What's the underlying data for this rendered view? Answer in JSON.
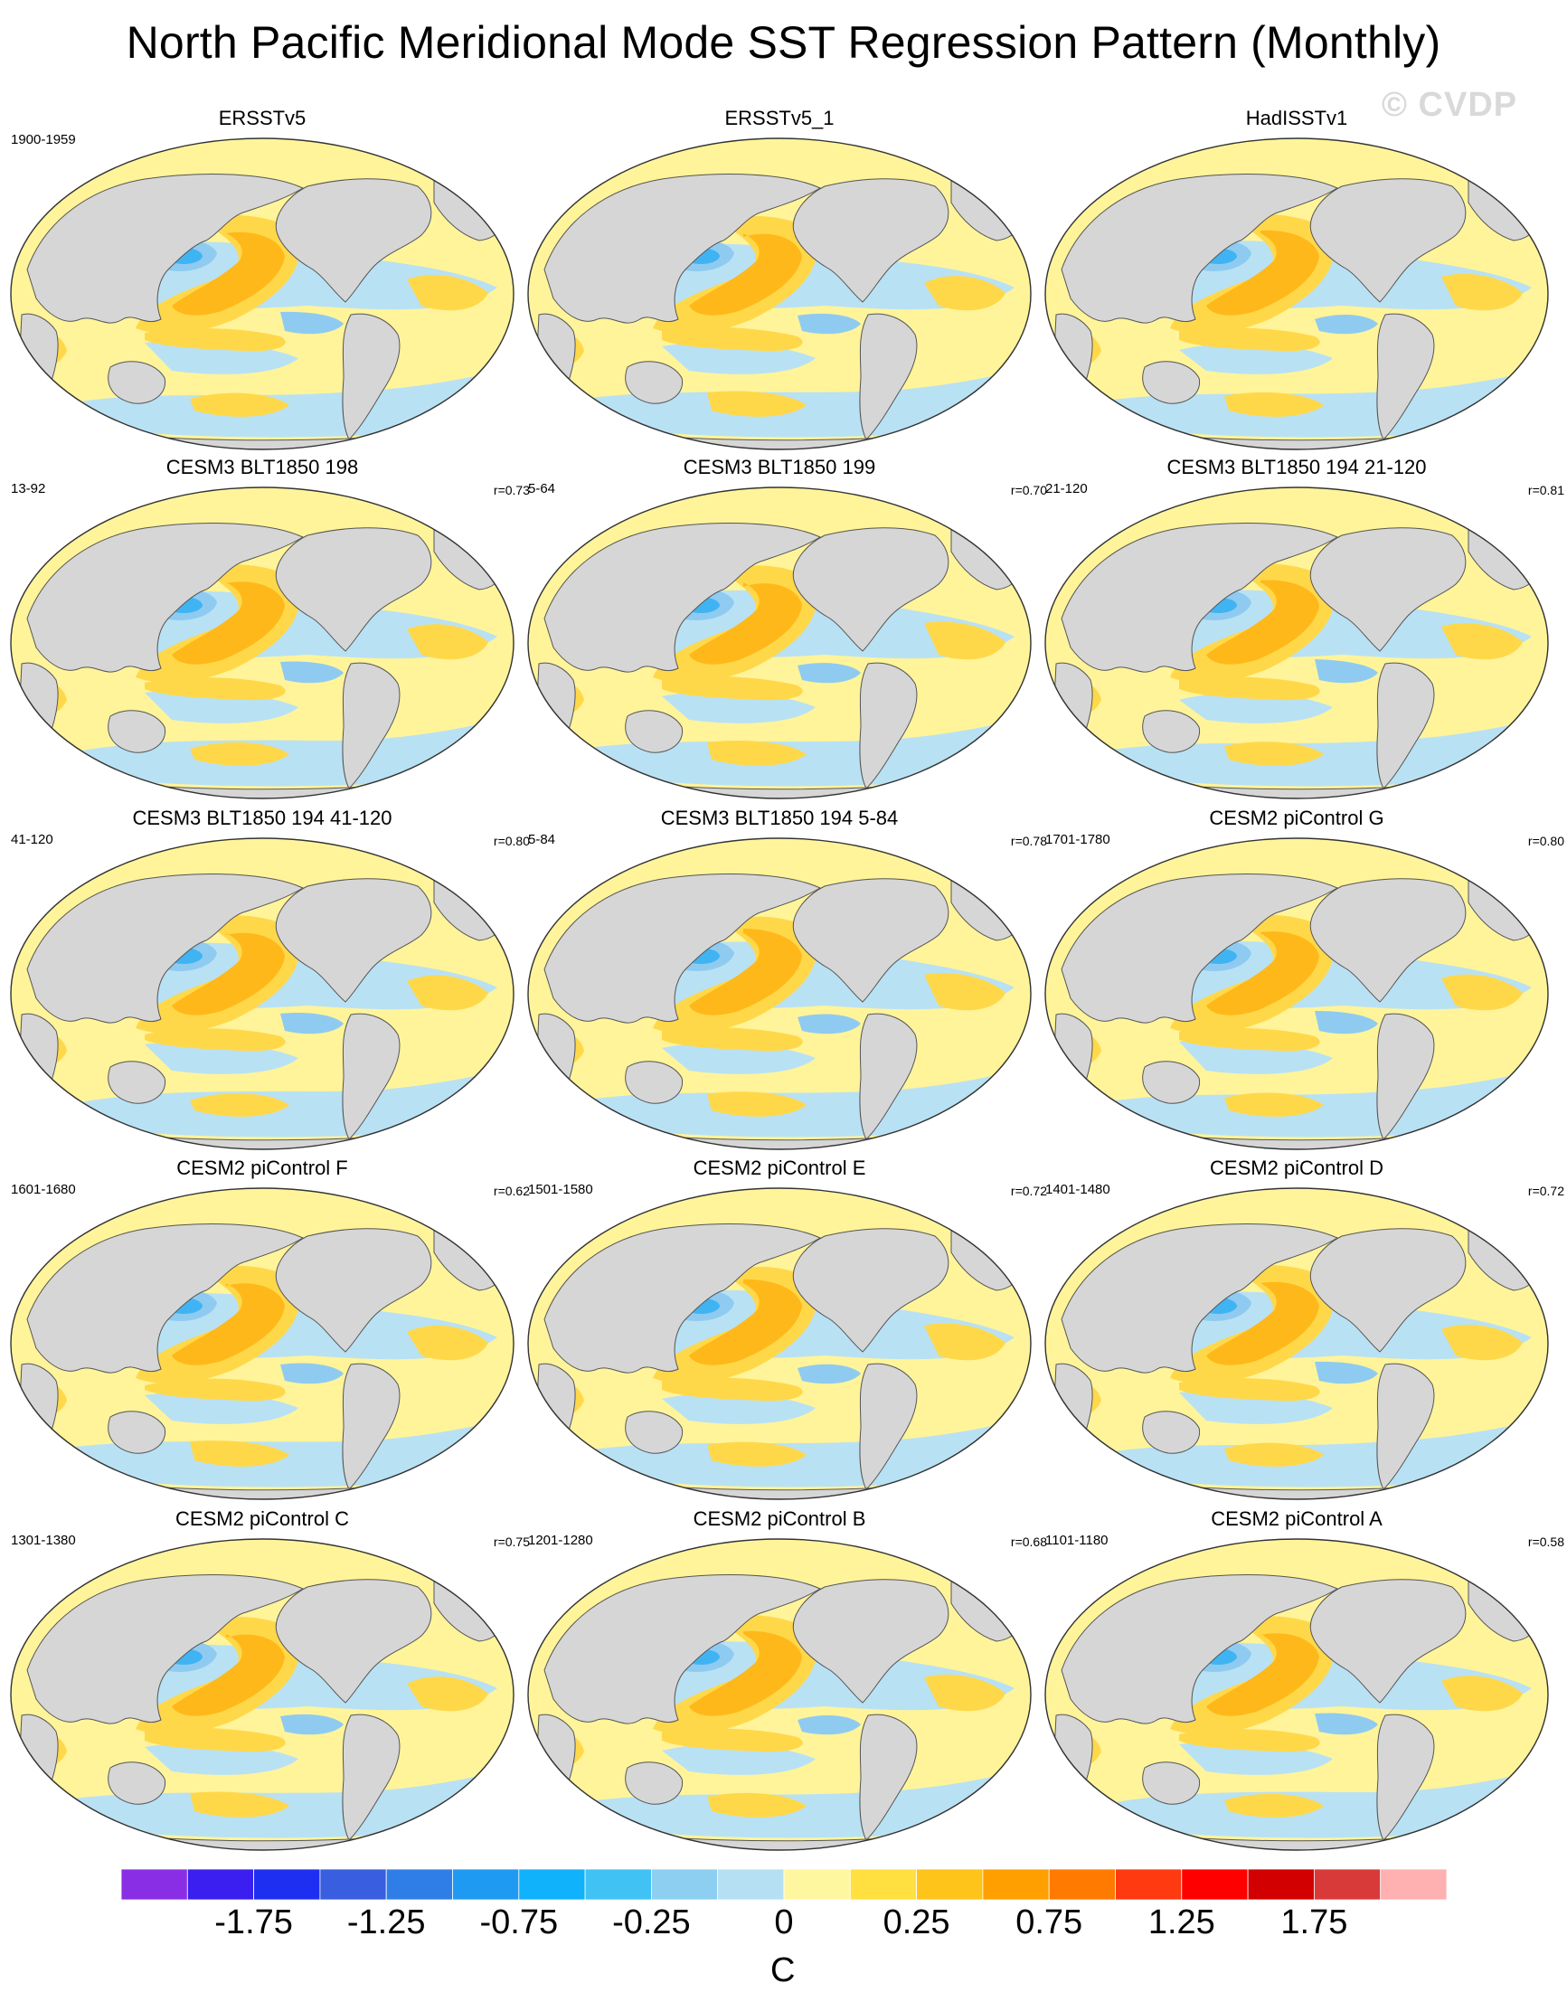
{
  "title": "North Pacific Meridional Mode SST Regression Pattern (Monthly)",
  "watermark": "© CVDP",
  "panels": [
    {
      "title": "ERSSTv5",
      "period": "1900-1959",
      "corr": ""
    },
    {
      "title": "ERSSTv5_1",
      "period": "",
      "corr": ""
    },
    {
      "title": "HadISSTv1",
      "period": "",
      "corr": ""
    },
    {
      "title": "CESM3 BLT1850 198",
      "period": "13-92",
      "corr": "r=0.73"
    },
    {
      "title": "CESM3 BLT1850 199",
      "period": "5-64",
      "corr": "r=0.70"
    },
    {
      "title": "CESM3 BLT1850 194 21-120",
      "period": "21-120",
      "corr": "r=0.81"
    },
    {
      "title": "CESM3 BLT1850 194 41-120",
      "period": "41-120",
      "corr": "r=0.80"
    },
    {
      "title": "CESM3 BLT1850 194 5-84",
      "period": "5-84",
      "corr": "r=0.78"
    },
    {
      "title": "CESM2 piControl G",
      "period": "1701-1780",
      "corr": "r=0.80"
    },
    {
      "title": "CESM2 piControl F",
      "period": "1601-1680",
      "corr": "r=0.62"
    },
    {
      "title": "CESM2 piControl E",
      "period": "1501-1580",
      "corr": "r=0.72"
    },
    {
      "title": "CESM2 piControl D",
      "period": "1401-1480",
      "corr": "r=0.72"
    },
    {
      "title": "CESM2 piControl C",
      "period": "1301-1380",
      "corr": "r=0.75"
    },
    {
      "title": "CESM2 piControl B",
      "period": "1201-1280",
      "corr": "r=0.68"
    },
    {
      "title": "CESM2 piControl A",
      "period": "1101-1180",
      "corr": "r=0.58"
    }
  ],
  "colorbar": {
    "colors": [
      "#8a2ee6",
      "#3a1ff0",
      "#1e2ff2",
      "#3a5ee0",
      "#2f7ee8",
      "#1f9af2",
      "#0fb2fb",
      "#40c2f5",
      "#8ccff0",
      "#b5e0f4",
      "#fff7a0",
      "#ffe040",
      "#ffc41a",
      "#ffa000",
      "#ff7a00",
      "#ff3a10",
      "#ff0000",
      "#d20000",
      "#d83a3a",
      "#ffb0b0"
    ],
    "labels": [
      "-1.75",
      "-1.25",
      "-0.75",
      "-0.25",
      "0",
      "0.25",
      "0.75",
      "1.25",
      "1.75"
    ],
    "units": "C"
  },
  "palette": {
    "ocean_base": "#fff49a",
    "land": "#d6d6d6",
    "pos1": "#ffd84a",
    "pos2": "#ffb81a",
    "pos3": "#ff9a10",
    "neg1": "#b9e1f4",
    "neg2": "#8fcbf0",
    "neg3": "#40b4f2"
  }
}
